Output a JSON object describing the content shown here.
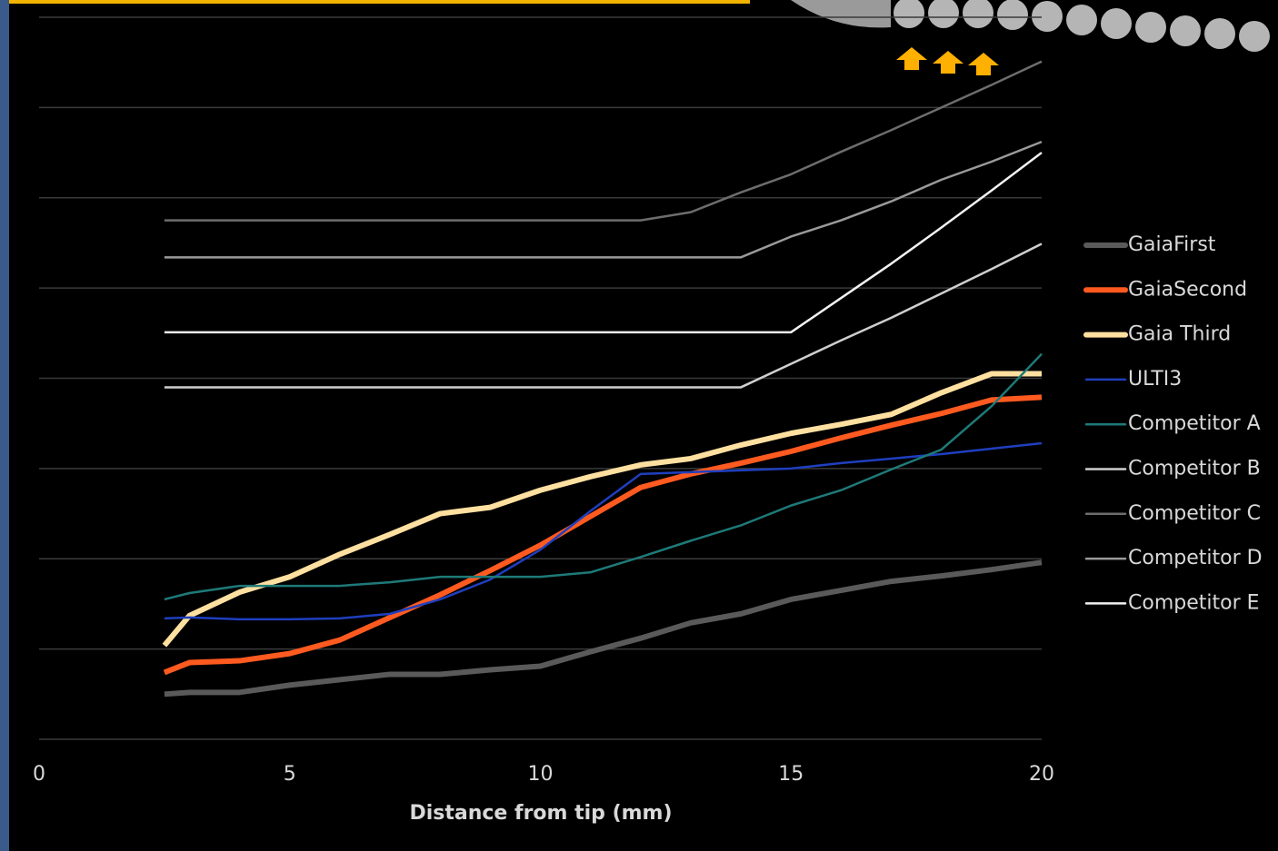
{
  "chart_data": {
    "type": "line",
    "x_label": "Distance from tip (mm)",
    "x": [
      2.5,
      3,
      4,
      5,
      6,
      7,
      8,
      9,
      10,
      11,
      12,
      13,
      14,
      15,
      16,
      17,
      18,
      19,
      20
    ],
    "xlim": [
      0,
      20
    ],
    "xticks": [
      0,
      5,
      10,
      15,
      20
    ],
    "ylim": [
      0,
      8
    ],
    "yticks": [
      0,
      1,
      2,
      3,
      4,
      5,
      6,
      7,
      8
    ],
    "ytick_labels": false,
    "grid": true,
    "legend": "right",
    "series": [
      {
        "name": "GaiaFirst",
        "color": "#5a5a5a",
        "width": 6,
        "values": [
          0.5,
          0.52,
          0.52,
          0.6,
          0.66,
          0.72,
          0.72,
          0.77,
          0.81,
          0.97,
          1.12,
          1.29,
          1.39,
          1.55,
          1.65,
          1.75,
          1.81,
          1.88,
          1.96
        ]
      },
      {
        "name": "GaiaSecond",
        "color": "#ff5a1f",
        "width": 6,
        "values": [
          0.74,
          0.85,
          0.87,
          0.95,
          1.1,
          1.35,
          1.6,
          1.87,
          2.15,
          2.47,
          2.79,
          2.94,
          3.06,
          3.19,
          3.34,
          3.48,
          3.61,
          3.76,
          3.79
        ]
      },
      {
        "name": "Gaia Third",
        "color": "#ffe0a0",
        "width": 6,
        "values": [
          1.04,
          1.37,
          1.63,
          1.8,
          2.05,
          2.27,
          2.5,
          2.57,
          2.76,
          2.91,
          3.04,
          3.11,
          3.26,
          3.39,
          3.49,
          3.6,
          3.84,
          4.05,
          4.05
        ]
      },
      {
        "name": "ULTI3",
        "color": "#1f3fbf",
        "width": 2.5,
        "values": [
          1.34,
          1.35,
          1.33,
          1.33,
          1.34,
          1.39,
          1.55,
          1.77,
          2.1,
          2.53,
          2.94,
          2.96,
          2.98,
          3.0,
          3.06,
          3.11,
          3.16,
          3.22,
          3.28
        ]
      },
      {
        "name": "Competitor A",
        "color": "#1e7a78",
        "width": 2.5,
        "values": [
          1.55,
          1.62,
          1.7,
          1.7,
          1.7,
          1.74,
          1.8,
          1.8,
          1.8,
          1.85,
          2.02,
          2.2,
          2.37,
          2.59,
          2.76,
          2.99,
          3.21,
          3.69,
          4.27
        ]
      },
      {
        "name": "Competitor B",
        "color": "#cfcfcf",
        "width": 2.5,
        "values": [
          3.9,
          3.9,
          3.9,
          3.9,
          3.9,
          3.9,
          3.9,
          3.9,
          3.9,
          3.9,
          3.9,
          3.9,
          3.9,
          4.16,
          4.42,
          4.67,
          4.94,
          5.21,
          5.49
        ]
      },
      {
        "name": "Competitor C",
        "color": "#6d6d6d",
        "width": 2.5,
        "values": [
          5.75,
          5.75,
          5.75,
          5.75,
          5.75,
          5.75,
          5.75,
          5.75,
          5.75,
          5.75,
          5.75,
          5.84,
          6.06,
          6.26,
          6.51,
          6.75,
          7.0,
          7.25,
          7.51
        ]
      },
      {
        "name": "Competitor D",
        "color": "#9a9a9a",
        "width": 2.5,
        "values": [
          5.34,
          5.34,
          5.34,
          5.34,
          5.34,
          5.34,
          5.34,
          5.34,
          5.34,
          5.34,
          5.34,
          5.34,
          5.34,
          5.57,
          5.75,
          5.96,
          6.2,
          6.4,
          6.62
        ]
      },
      {
        "name": "Competitor E",
        "color": "#f2f2f2",
        "width": 2.5,
        "values": [
          4.51,
          4.51,
          4.51,
          4.51,
          4.51,
          4.51,
          4.51,
          4.51,
          4.51,
          4.51,
          4.51,
          4.51,
          4.51,
          4.51,
          4.89,
          5.27,
          5.67,
          6.08,
          6.5
        ]
      }
    ]
  }
}
